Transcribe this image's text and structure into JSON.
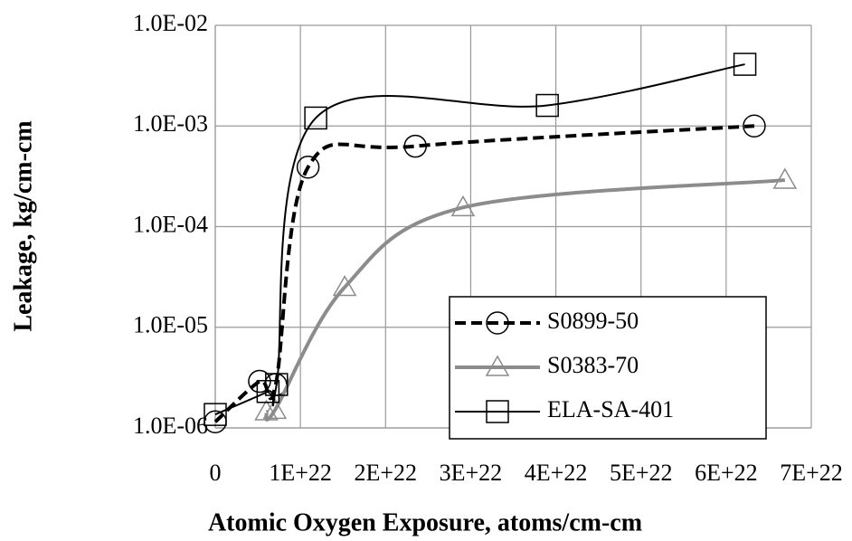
{
  "chart_data": {
    "type": "line",
    "x_label": "Atomic Oxygen Exposure, atoms/cm-cm",
    "y_label": "Leakage, kg/cm-cm",
    "log_y": true,
    "grid": true,
    "legend": "lower right",
    "smooth": true,
    "xlim": [
      0,
      7e+22
    ],
    "xticks": [
      0,
      {
        "value": 1e+22,
        "label": "1E+22"
      },
      {
        "value": 2e+22,
        "label": "2E+22"
      },
      {
        "value": 3e+22,
        "label": "3E+22"
      },
      {
        "value": 4e+22,
        "label": "4E+22"
      },
      {
        "value": 5e+22,
        "label": "5E+22"
      },
      {
        "value": 6e+22,
        "label": "6E+22"
      },
      {
        "value": 7e+22,
        "label": "7E+22"
      }
    ],
    "ylim": [
      1e-06,
      0.01
    ],
    "yticks": [
      {
        "value": 1e-06,
        "label": "1.0E-06"
      },
      {
        "value": 1e-05,
        "label": "1.0E-05"
      },
      {
        "value": 0.0001,
        "label": "1.0E-04"
      },
      {
        "value": 0.001,
        "label": "1.0E-03"
      },
      {
        "value": 0.01,
        "label": "1.0E-02"
      }
    ],
    "series": [
      {
        "name": "S0899-50",
        "color": "#000000",
        "marker": "circle",
        "dashed": true,
        "line_width": 4,
        "x": [
          0,
          5.2e+21,
          7.1e+21,
          1.09e+22,
          2.35e+22,
          6.33e+22
        ],
        "values": [
          1.15e-06,
          2.9e-06,
          2.7e-06,
          0.00039,
          0.00063,
          0.001
        ]
      },
      {
        "name": "S0383-70",
        "color": "#8c8c8c",
        "marker": "triangle",
        "dashed": false,
        "line_width": 4,
        "x": [
          6e+21,
          7e+21,
          1.52e+22,
          2.91e+22,
          6.69e+22
        ],
        "values": [
          1.45e-06,
          1.5e-06,
          2.5e-05,
          0.000155,
          0.00029
        ]
      },
      {
        "name": "ELA-SA-401",
        "color": "#000000",
        "marker": "square",
        "dashed": false,
        "line_width": 2,
        "x": [
          0,
          6.2e+21,
          7.2e+21,
          1.18e+22,
          3.9e+22,
          6.22e+22
        ],
        "values": [
          1.36e-06,
          2.3e-06,
          2.7e-06,
          0.0012,
          0.0016,
          0.0041
        ]
      }
    ]
  }
}
